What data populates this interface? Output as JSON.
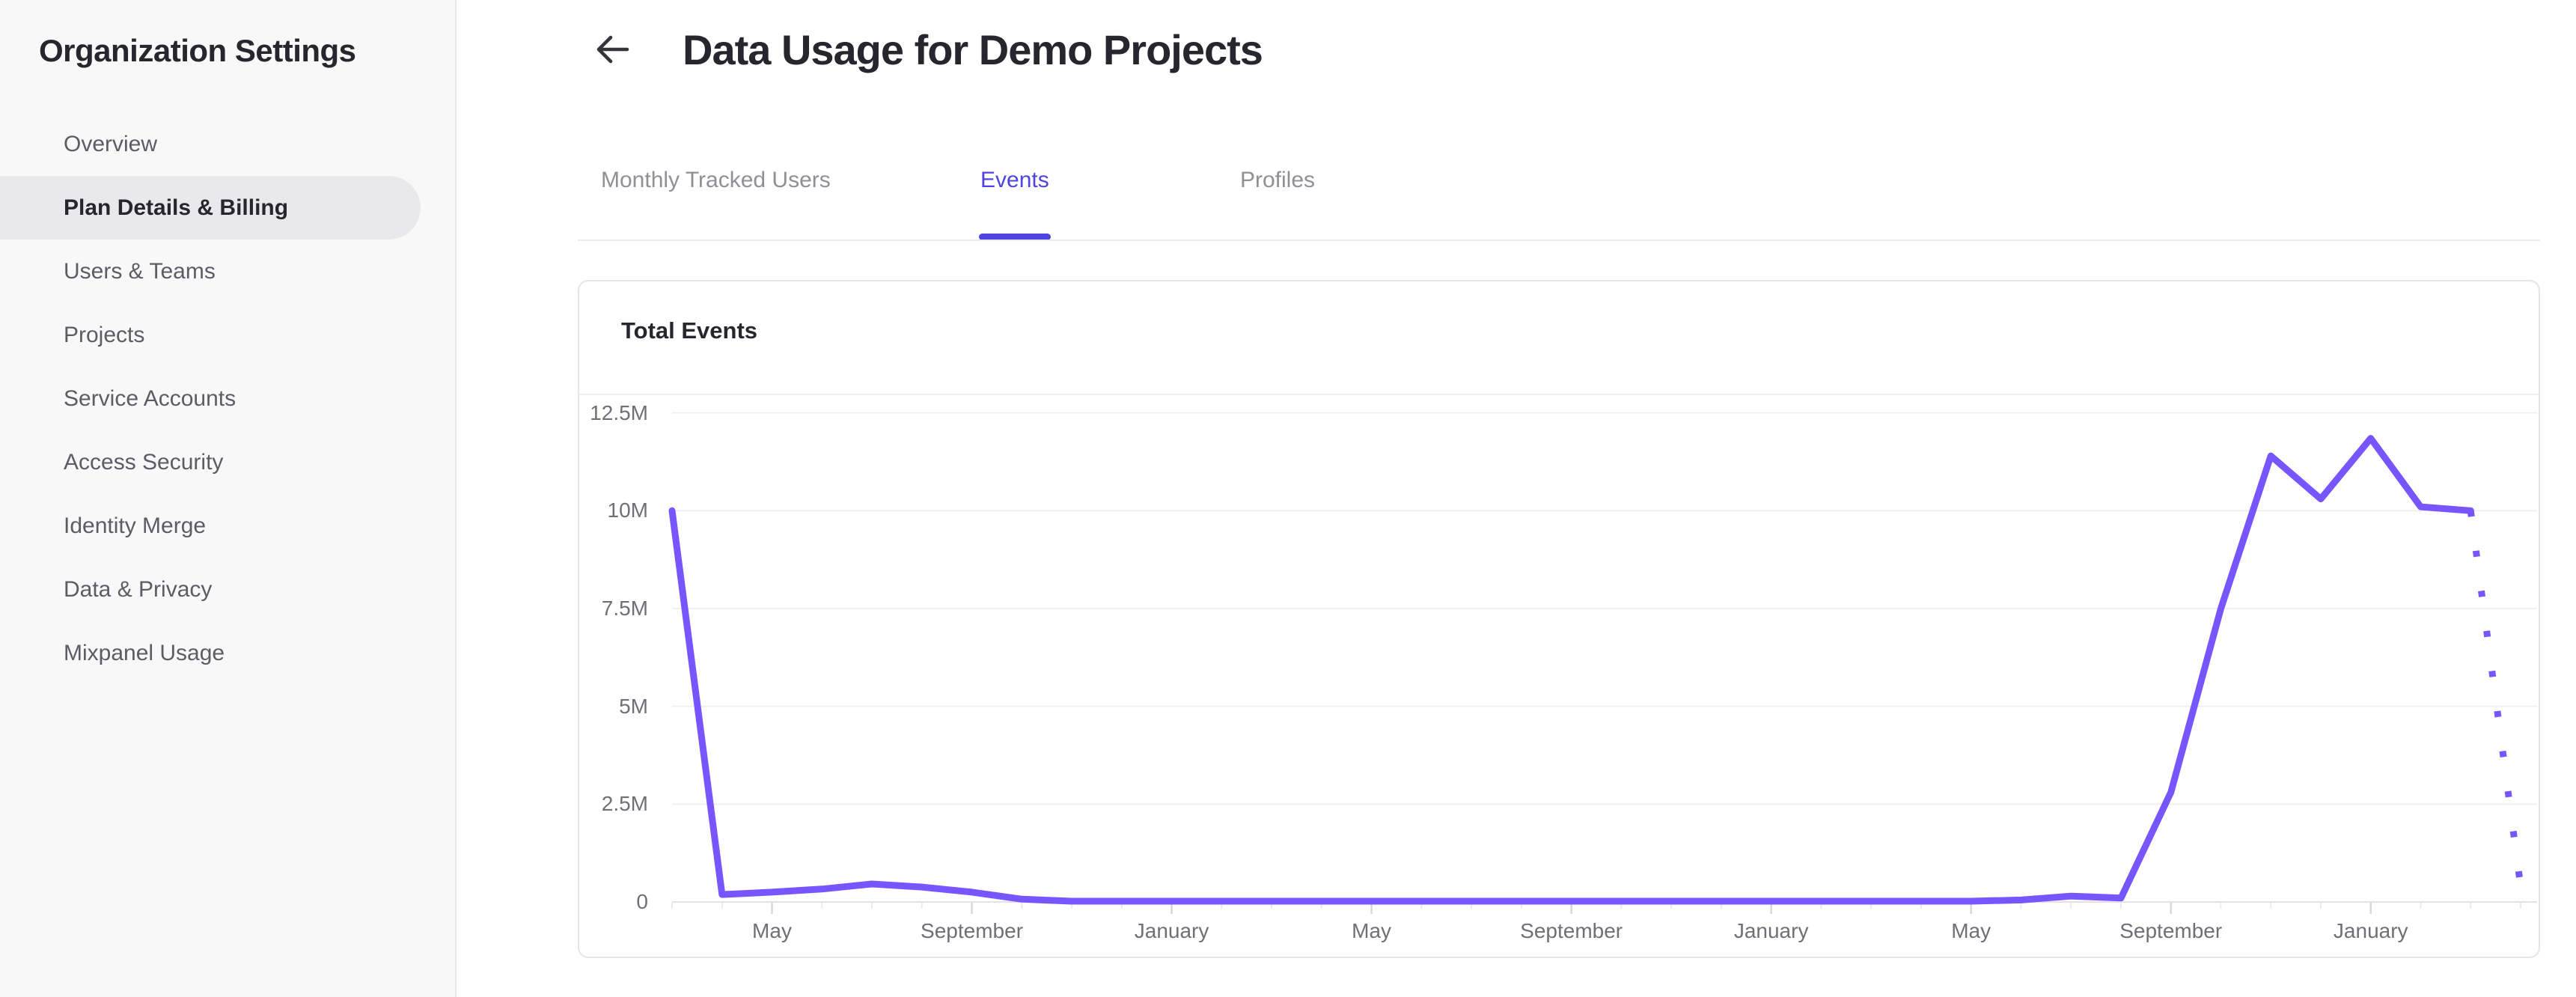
{
  "sidebar": {
    "title": "Organization Settings",
    "items": [
      {
        "label": "Overview",
        "active": false
      },
      {
        "label": "Plan Details & Billing",
        "active": true
      },
      {
        "label": "Users & Teams",
        "active": false
      },
      {
        "label": "Projects",
        "active": false
      },
      {
        "label": "Service Accounts",
        "active": false
      },
      {
        "label": "Access Security",
        "active": false
      },
      {
        "label": "Identity Merge",
        "active": false
      },
      {
        "label": "Data & Privacy",
        "active": false
      },
      {
        "label": "Mixpanel Usage",
        "active": false
      }
    ]
  },
  "header": {
    "title": "Data Usage for Demo Projects",
    "back_icon": "left-arrow"
  },
  "tabs": [
    {
      "label": "Monthly Tracked Users",
      "active": false
    },
    {
      "label": "Events",
      "active": true
    },
    {
      "label": "Profiles",
      "active": false
    }
  ],
  "card": {
    "title": "Total Events"
  },
  "colors": {
    "accent_tab": "#4f44e0",
    "line_purple": "#7856ff",
    "grid_line": "#f0f0f2",
    "zero_axis_line": "#e2e2e5",
    "major_tick": "#d8d8db",
    "minor_tick": "#ebebee",
    "sidebar_bg": "#f8f8f9",
    "active_pill_bg": "#e9e9eb"
  },
  "chart_data": {
    "type": "line",
    "title": "Total Events",
    "grid": "horizontal",
    "legend": "none",
    "ylim_millions": [
      0,
      12.5
    ],
    "y_axis": {
      "tick_labels": [
        "12.5M",
        "10M",
        "7.5M",
        "5M",
        "2.5M",
        "0"
      ],
      "tick_values_millions": [
        12.5,
        10,
        7.5,
        5,
        2.5,
        0
      ]
    },
    "x_axis": {
      "tick_labels": [
        "May",
        "September",
        "January",
        "May",
        "September",
        "January",
        "May",
        "September",
        "January"
      ],
      "tick_point_indices": [
        2,
        6,
        10,
        14,
        18,
        22,
        26,
        30,
        34
      ]
    },
    "series": [
      {
        "name": "Total Events",
        "color": "#7856ff",
        "point_months": [
          "Mar",
          "Apr",
          "May",
          "Jun",
          "Jul",
          "Aug",
          "Sep",
          "Oct",
          "Nov",
          "Dec",
          "Jan",
          "Feb",
          "Mar",
          "Apr",
          "May",
          "Jun",
          "Jul",
          "Aug",
          "Sep",
          "Oct",
          "Nov",
          "Dec",
          "Jan",
          "Feb",
          "Mar",
          "Apr",
          "May",
          "Jun",
          "Jul",
          "Aug",
          "Sep",
          "Oct",
          "Nov",
          "Dec",
          "Jan",
          "Feb",
          "Mar",
          "Apr"
        ],
        "values_millions": [
          10,
          0.19,
          0.25,
          0.33,
          0.46,
          0.38,
          0.25,
          0.07,
          0.02,
          0.02,
          0.02,
          0.02,
          0.02,
          0.02,
          0.02,
          0.02,
          0.02,
          0.02,
          0.02,
          0.02,
          0.02,
          0.02,
          0.02,
          0.02,
          0.02,
          0.02,
          0.02,
          0.05,
          0.15,
          0.1,
          2.8,
          7.5,
          11.4,
          10.3,
          11.85,
          10.1,
          10.0,
          0.4
        ],
        "last_segment_style": "dotted",
        "last_segment_note": "final month shown as dotted projection"
      }
    ]
  }
}
